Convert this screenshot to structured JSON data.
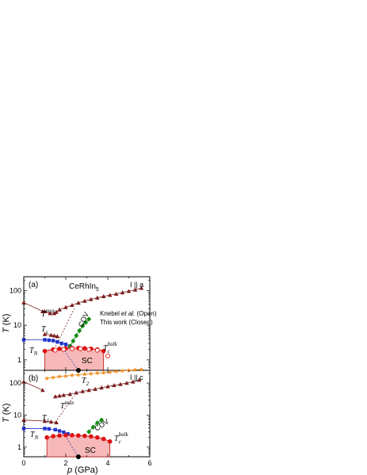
{
  "chart_data": [
    {
      "type": "scatter",
      "panel_label": "(a)",
      "compound_main": "CeRhIn",
      "compound_sub": "5",
      "orientation": "I || a",
      "legend_line1_a": "Knebel",
      "legend_line1_b": "et al.",
      "legend_line1_c": " (Open)",
      "legend_line2": "This work (Closed)",
      "xlim": [
        0,
        6
      ],
      "ylim": [
        0.5,
        250
      ],
      "yscale": "log",
      "yticks": [
        "1",
        "10",
        "100"
      ],
      "annotations": {
        "tmax_main": "T",
        "tmax_sup": "max",
        "ts_main": "T",
        "ts_sub": "s",
        "tn_main": "T",
        "tn_sub": "N",
        "tc_main": "T",
        "tc_sub": "c",
        "tc_sup": "bulk",
        "cov": "COV",
        "sc": "SC"
      },
      "series": [
        {
          "key": "tmax",
          "color": "#7b1e1e",
          "marker": "triangle",
          "x": [
            1.0,
            1.25,
            1.45,
            1.55,
            1.7,
            2.0,
            2.3,
            2.6,
            2.9,
            3.2,
            3.5,
            3.8,
            4.1,
            4.4,
            4.7,
            5.0,
            5.3,
            5.6
          ],
          "y": [
            25,
            22,
            22,
            24,
            28,
            33,
            38,
            44,
            50,
            56,
            62,
            68,
            74,
            80,
            88,
            96,
            105,
            118
          ]
        },
        {
          "key": "tmax_low",
          "color": "#7b1e1e",
          "marker": "triangle",
          "x": [
            0.0,
            0.9
          ],
          "y": [
            45,
            25
          ]
        },
        {
          "key": "ts",
          "color": "#7b1e1e",
          "marker": "triangle",
          "x": [
            1.0,
            1.3,
            1.45,
            1.6
          ],
          "y": [
            5.5,
            5.2,
            5.0,
            4.8
          ]
        },
        {
          "key": "tn",
          "color": "#2233cc",
          "marker": "square",
          "x": [
            0.0,
            1.0,
            1.2,
            1.4,
            1.6,
            1.8,
            2.0,
            2.2
          ],
          "y": [
            3.8,
            3.8,
            3.7,
            3.6,
            3.3,
            3.0,
            2.8,
            2.5
          ]
        },
        {
          "key": "cov",
          "color": "#138a13",
          "marker": "diamond",
          "x": [
            2.2,
            2.35,
            2.5,
            2.65,
            2.8,
            2.95,
            3.1
          ],
          "y": [
            2.5,
            3.5,
            5.0,
            7.0,
            9.5,
            12.0,
            15.0
          ]
        },
        {
          "key": "tc",
          "color": "#dd1111",
          "marker": "circle",
          "x": [
            1.0,
            1.4,
            1.7,
            2.0,
            2.3,
            2.6,
            2.9,
            3.2,
            3.5,
            3.8
          ],
          "y": [
            1.8,
            2.0,
            2.1,
            2.15,
            2.2,
            2.2,
            2.15,
            2.1,
            2.0,
            1.8
          ]
        },
        {
          "key": "tc_open",
          "color": "#dd1111",
          "marker": "circle-open",
          "x": [
            1.5,
            1.9,
            2.3,
            2.7,
            3.1,
            3.5,
            4.0
          ],
          "y": [
            1.9,
            2.0,
            2.1,
            2.1,
            2.0,
            1.9,
            1.3
          ]
        }
      ],
      "ref_points": [
        {
          "x": 2.6,
          "y": 0.5
        }
      ]
    },
    {
      "type": "scatter",
      "panel_label": "(b)",
      "orientation": "I || c",
      "xlabel_main": "p",
      "xlabel_unit": " (GPa)",
      "ylabel_main": "T",
      "ylabel_unit": " (K)",
      "xlim": [
        0,
        6
      ],
      "ylim": [
        0.5,
        250
      ],
      "yscale": "log",
      "xticks": [
        "0",
        "2",
        "4",
        "6"
      ],
      "yticks": [
        "1",
        "10",
        "100"
      ],
      "annotations": {
        "t2_main": "T",
        "t2_sub": "2",
        "tmax_main": "T",
        "tmax_sup": "max",
        "t1_main": "T",
        "t1_sub": "1",
        "tn_main": "T",
        "tn_sub": "N",
        "tc_main": "T",
        "tc_sub": "c",
        "tc_sup": "bulk",
        "cov": "COV",
        "sc": "SC"
      },
      "series": [
        {
          "key": "t2",
          "color": "#f08c1e",
          "marker": "star",
          "x": [
            1.1,
            1.4,
            1.7,
            2.0,
            2.3,
            2.6,
            2.9,
            3.2,
            3.5,
            3.8,
            4.1,
            4.4,
            4.7,
            5.0,
            5.3,
            5.6
          ],
          "y": [
            140,
            150,
            160,
            165,
            175,
            180,
            190,
            195,
            205,
            210,
            220,
            230,
            240,
            250,
            258,
            265
          ]
        },
        {
          "key": "tmax",
          "color": "#7b1e1e",
          "marker": "triangle",
          "x": [
            1.5,
            1.7,
            1.9,
            2.2,
            2.5,
            2.8,
            3.1,
            3.4,
            3.7,
            4.0,
            4.3,
            4.6,
            4.9,
            5.2,
            5.5
          ],
          "y": [
            38,
            40,
            42,
            45,
            50,
            55,
            60,
            65,
            72,
            78,
            85,
            92,
            100,
            110,
            125
          ]
        },
        {
          "key": "tmax_low",
          "color": "#7b1e1e",
          "marker": "triangle",
          "x": [
            0.0,
            0.9
          ],
          "y": [
            110,
            60
          ]
        },
        {
          "key": "t1",
          "color": "#7b1e1e",
          "marker": "triangle",
          "x": [
            0.0,
            1.0,
            1.3,
            1.55
          ],
          "y": [
            7.0,
            6.5,
            6.2,
            5.9
          ]
        },
        {
          "key": "tn",
          "color": "#2233cc",
          "marker": "square",
          "x": [
            0.0,
            1.0,
            1.2,
            1.5,
            1.7,
            1.9,
            2.1
          ],
          "y": [
            3.8,
            3.8,
            3.7,
            3.5,
            3.2,
            2.9,
            2.6
          ]
        },
        {
          "key": "cov",
          "color": "#138a13",
          "marker": "diamond",
          "x": [
            3.1,
            3.3,
            3.5,
            3.7
          ],
          "y": [
            3.0,
            4.2,
            5.7,
            7.0
          ]
        },
        {
          "key": "tc",
          "color": "#dd1111",
          "marker": "circle",
          "x": [
            1.1,
            1.4,
            1.7,
            2.0,
            2.3,
            2.6,
            2.9,
            3.2,
            3.5,
            3.8,
            4.1
          ],
          "y": [
            2.0,
            2.2,
            2.3,
            2.35,
            2.35,
            2.3,
            2.25,
            2.15,
            2.0,
            1.8,
            1.5
          ]
        }
      ],
      "ref_points": [
        {
          "x": 2.6,
          "y": 0.5
        }
      ]
    }
  ]
}
